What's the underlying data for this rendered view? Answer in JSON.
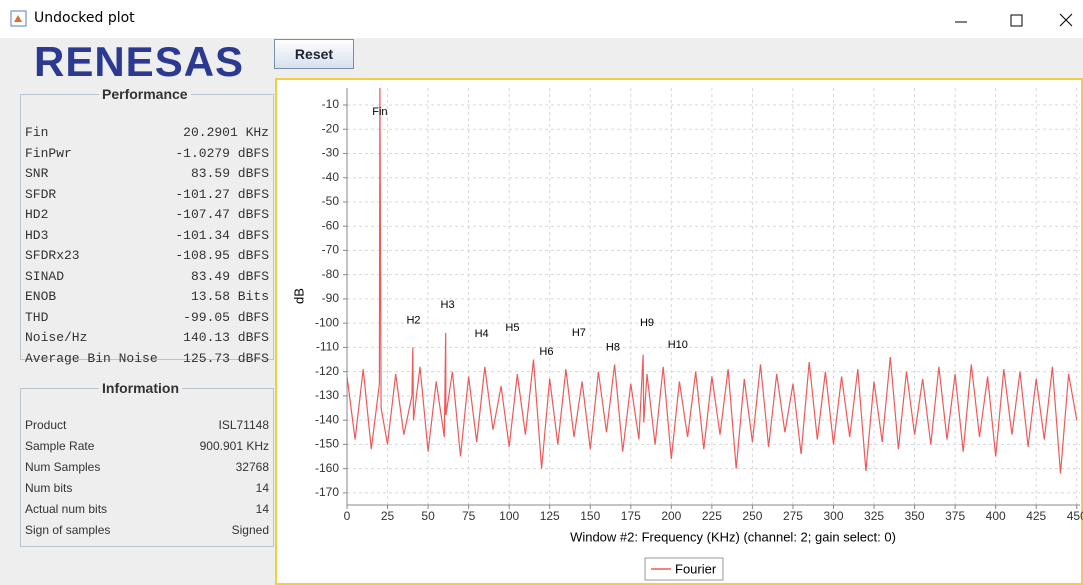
{
  "window": {
    "title": "Undocked plot"
  },
  "logo": "RENESAS",
  "reset_button": "Reset",
  "performance": {
    "title": "Performance",
    "rows": [
      [
        "Fin",
        "20.2901 KHz"
      ],
      [
        "FinPwr",
        "-1.0279 dBFS"
      ],
      [
        "SNR",
        "83.59 dBFS"
      ],
      [
        "SFDR",
        "-101.27 dBFS"
      ],
      [
        "HD2",
        "-107.47 dBFS"
      ],
      [
        "HD3",
        "-101.34 dBFS"
      ],
      [
        "SFDRx23",
        "-108.95 dBFS"
      ],
      [
        "SINAD",
        "83.49 dBFS"
      ],
      [
        "ENOB",
        "13.58 Bits"
      ],
      [
        "THD",
        "-99.05 dBFS"
      ],
      [
        "Noise/Hz",
        "140.13 dBFS"
      ],
      [
        "Average Bin Noise",
        "125.73 dBFS"
      ]
    ]
  },
  "information": {
    "title": "Information",
    "rows": [
      [
        "Product",
        "ISL71148"
      ],
      [
        "Sample Rate",
        "900.901 KHz"
      ],
      [
        "Num Samples",
        "32768"
      ],
      [
        "Num bits",
        "14"
      ],
      [
        "Actual num bits",
        "14"
      ],
      [
        "Sign of samples",
        "Signed"
      ]
    ]
  },
  "chart_data": {
    "type": "line",
    "x_label": "Window #2: Frequency (KHz) (channel: 2; gain select: 0)",
    "y_label": "dB",
    "xlim": [
      0,
      452
    ],
    "ylim": [
      -175,
      -3
    ],
    "xticks": [
      0,
      25,
      50,
      75,
      100,
      125,
      150,
      175,
      200,
      225,
      250,
      275,
      300,
      325,
      350,
      375,
      400,
      425,
      450
    ],
    "yticks": [
      -10,
      -20,
      -30,
      -40,
      -50,
      -60,
      -70,
      -80,
      -90,
      -100,
      -110,
      -120,
      -130,
      -140,
      -150,
      -160,
      -170
    ],
    "grid": true,
    "series": [
      {
        "name": "Fourier",
        "color": "#ee5a5a",
        "x": [
          0,
          5,
          10,
          15,
          20,
          20.29,
          21,
          25,
          30,
          35,
          40,
          40.58,
          41,
          45,
          50,
          55,
          60,
          60.87,
          61,
          65,
          70,
          75,
          80,
          85,
          90,
          95,
          100,
          105,
          110,
          115,
          120,
          125,
          130,
          135,
          140,
          145,
          150,
          155,
          160,
          165,
          170,
          175,
          180,
          182.6,
          183,
          185,
          190,
          195,
          200,
          205,
          210,
          215,
          220,
          225,
          230,
          235,
          240,
          245,
          250,
          255,
          260,
          265,
          270,
          275,
          280,
          285,
          290,
          295,
          300,
          305,
          310,
          315,
          320,
          325,
          330,
          335,
          340,
          345,
          350,
          355,
          360,
          365,
          370,
          375,
          380,
          385,
          390,
          395,
          400,
          405,
          410,
          415,
          420,
          425,
          430,
          435,
          440,
          445,
          450
        ],
        "values": [
          -122,
          -148,
          -119,
          -152,
          -125,
          -1.03,
          -135,
          -150,
          -121,
          -146,
          -130,
          -110,
          -140,
          -118,
          -153,
          -124,
          -147,
          -104,
          -138,
          -120,
          -155,
          -122,
          -149,
          -118,
          -144,
          -126,
          -151,
          -121,
          -146,
          -115,
          -160,
          -123,
          -150,
          -119,
          -147,
          -124,
          -152,
          -120,
          -145,
          -117,
          -153,
          -125,
          -148,
          -113,
          -141,
          -121,
          -150,
          -118,
          -156,
          -124,
          -147,
          -120,
          -152,
          -122,
          -146,
          -119,
          -160,
          -123,
          -149,
          -117,
          -151,
          -121,
          -145,
          -125,
          -154,
          -116,
          -148,
          -120,
          -150,
          -122,
          -147,
          -119,
          -161,
          -124,
          -149,
          -114,
          -152,
          -120,
          -146,
          -123,
          -150,
          -118,
          -148,
          -121,
          -153,
          -117,
          -147,
          -122,
          -155,
          -119,
          -146,
          -120,
          -151,
          -123,
          -148,
          -118,
          -162,
          -121,
          -140
        ]
      }
    ],
    "annotations": [
      {
        "text": "Fin",
        "x": 20.29,
        "y": -13
      },
      {
        "text": "H2",
        "x": 41,
        "y": -99
      },
      {
        "text": "H3",
        "x": 62,
        "y": -92.5
      },
      {
        "text": "H4",
        "x": 83,
        "y": -104.5
      },
      {
        "text": "H5",
        "x": 102,
        "y": -102
      },
      {
        "text": "H6",
        "x": 123,
        "y": -112
      },
      {
        "text": "H7",
        "x": 143,
        "y": -104
      },
      {
        "text": "H8",
        "x": 164,
        "y": -110
      },
      {
        "text": "H9",
        "x": 185,
        "y": -100
      },
      {
        "text": "H10",
        "x": 204,
        "y": -109
      }
    ],
    "legend": "bottom"
  }
}
